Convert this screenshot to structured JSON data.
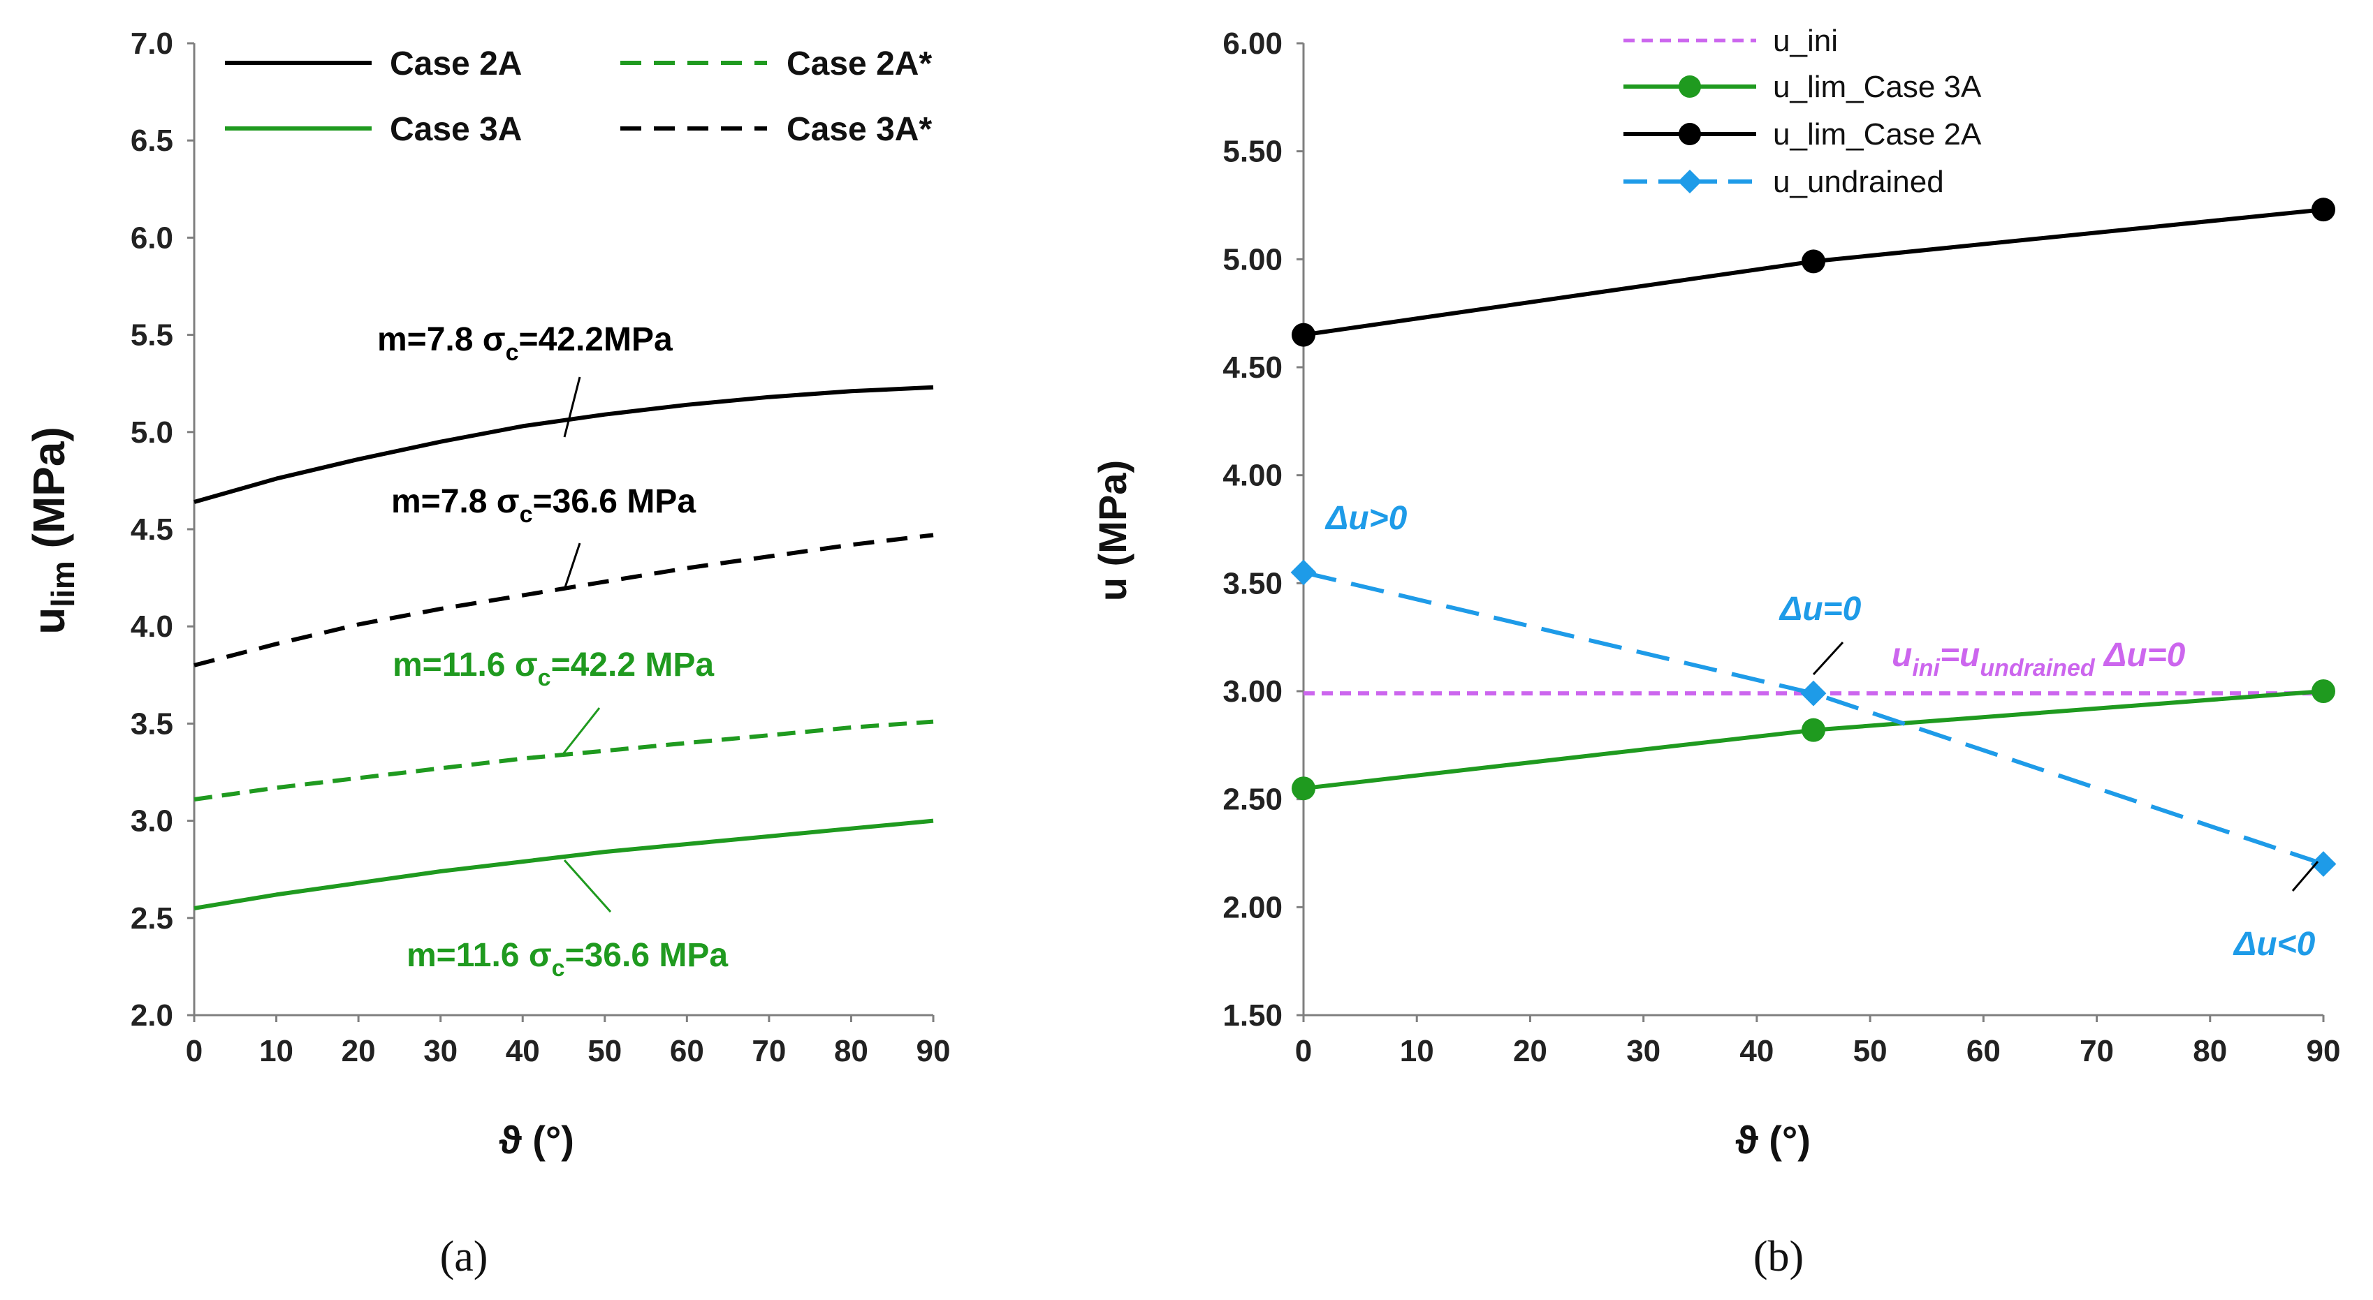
{
  "colors": {
    "black": "#000000",
    "green": "#1f9a1f",
    "violet": "#cc66ee",
    "blue": "#1e9be8",
    "axis": "#7f7f7f"
  },
  "panel_labels": {
    "a": "(a)",
    "b": "(b)"
  },
  "chart_data": [
    {
      "type": "line",
      "id": "a",
      "title": "",
      "xlabel": "ϑ (°)",
      "ylabel_main": "u",
      "ylabel_sub": "lim",
      "ylabel_unit": " (MPa)",
      "xlim": [
        0,
        90
      ],
      "ylim": [
        2.0,
        7.0
      ],
      "x_ticks": [
        0,
        10,
        20,
        30,
        40,
        50,
        60,
        70,
        80,
        90
      ],
      "y_ticks": [
        "2.0",
        "2.5",
        "3.0",
        "3.5",
        "4.0",
        "4.5",
        "5.0",
        "5.5",
        "6.0",
        "6.5",
        "7.0"
      ],
      "grid": false,
      "legend_position": "top",
      "x": [
        0,
        10,
        20,
        30,
        40,
        50,
        60,
        70,
        80,
        90
      ],
      "series": [
        {
          "name": "Case 2A",
          "style": "solid",
          "color": "#000000",
          "values": [
            4.64,
            4.76,
            4.86,
            4.95,
            5.03,
            5.09,
            5.14,
            5.18,
            5.21,
            5.23
          ]
        },
        {
          "name": "Case 2A*",
          "style": "dashed",
          "color": "#1f9a1f",
          "values": [
            3.11,
            3.17,
            3.22,
            3.27,
            3.32,
            3.36,
            3.4,
            3.44,
            3.48,
            3.51
          ]
        },
        {
          "name": "Case 3A",
          "style": "solid",
          "color": "#1f9a1f",
          "values": [
            2.55,
            2.62,
            2.68,
            2.74,
            2.79,
            2.84,
            2.88,
            2.92,
            2.96,
            3.0
          ]
        },
        {
          "name": "Case 3A*",
          "style": "dashed",
          "color": "#000000",
          "values": [
            3.8,
            3.91,
            4.01,
            4.09,
            4.16,
            4.23,
            4.3,
            4.36,
            4.42,
            4.47
          ]
        }
      ],
      "annotations": [
        {
          "prefix": "m=7.8 σ",
          "sub": "c",
          "suffix": "=42.2MPa",
          "color": "#000000"
        },
        {
          "prefix": "m=7.8 σ",
          "sub": "c",
          "suffix": "=36.6 MPa",
          "color": "#000000"
        },
        {
          "prefix": "m=11.6 σ",
          "sub": "c",
          "suffix": "=42.2 MPa",
          "color": "#1f9a1f"
        },
        {
          "prefix": "m=11.6 σ",
          "sub": "c",
          "suffix": "=36.6 MPa",
          "color": "#1f9a1f"
        }
      ]
    },
    {
      "type": "line",
      "id": "b",
      "title": "",
      "xlabel": "ϑ (°)",
      "ylabel": "u (MPa)",
      "xlim": [
        0,
        90
      ],
      "ylim": [
        1.5,
        6.0
      ],
      "x_ticks": [
        0,
        10,
        20,
        30,
        40,
        50,
        60,
        70,
        80,
        90
      ],
      "y_ticks": [
        "1.50",
        "2.00",
        "2.50",
        "3.00",
        "3.50",
        "4.00",
        "4.50",
        "5.00",
        "5.50",
        "6.00"
      ],
      "grid": false,
      "legend_position": "top-left",
      "series": [
        {
          "name": "u_ini",
          "style": "dashed",
          "color": "#cc66ee",
          "marker": "none",
          "x": [
            0,
            90
          ],
          "values": [
            2.99,
            2.99
          ]
        },
        {
          "name": "u_lim_Case 3A",
          "style": "solid",
          "color": "#1f9a1f",
          "marker": "circle",
          "x": [
            0,
            45,
            90
          ],
          "values": [
            2.55,
            2.82,
            3.0
          ]
        },
        {
          "name": "u_lim_Case 2A",
          "style": "solid",
          "color": "#000000",
          "marker": "circle",
          "x": [
            0,
            45,
            90
          ],
          "values": [
            4.65,
            4.99,
            5.23
          ]
        },
        {
          "name": "u_undrained",
          "style": "dashed",
          "color": "#1e9be8",
          "marker": "diamond",
          "x": [
            0,
            45,
            90
          ],
          "values": [
            3.55,
            2.99,
            2.2
          ]
        }
      ],
      "annotations": {
        "du_pos": "Δu>0",
        "du_zero": "Δu=0",
        "du_neg": "Δu<0",
        "uini_main": "u",
        "uini_sub": "ini",
        "equals": "=u",
        "undrained_sub": "undrained",
        "du_zero_right": " Δu=0"
      }
    }
  ]
}
